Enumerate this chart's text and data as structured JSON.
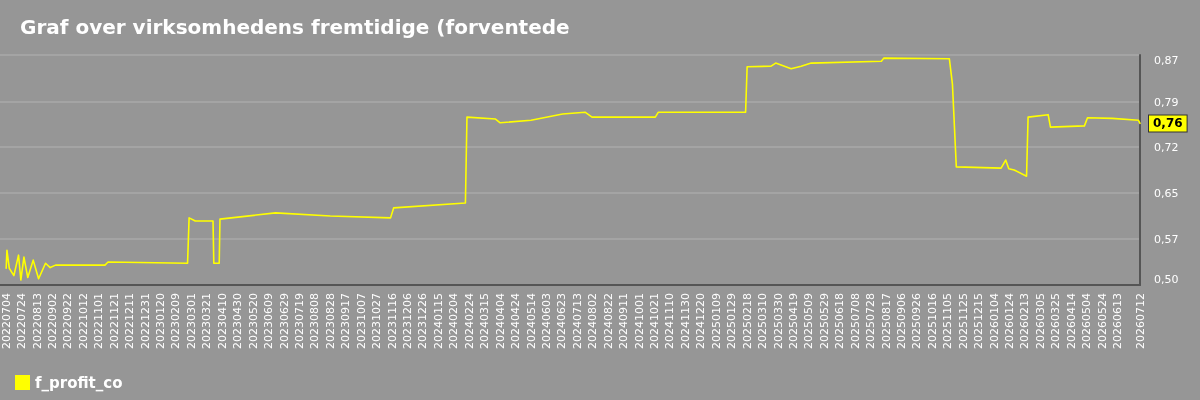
{
  "chart_data": {
    "type": "line",
    "title": "Graf over virksomhedens fremtidige (forventede",
    "x": [
      "2022-07-04",
      "2022-07-05",
      "2022-07-08",
      "2022-07-14",
      "2022-07-20",
      "2022-07-23",
      "2022-07-27",
      "2022-08-01",
      "2022-08-08",
      "2022-08-15",
      "2022-08-24",
      "2022-08-30",
      "2022-09-06",
      "2022-11-09",
      "2022-11-13",
      "2023-02-24",
      "2023-02-26",
      "2023-03-06",
      "2023-03-29",
      "2023-03-30",
      "2023-04-06",
      "2023-04-07",
      "2023-06-18",
      "2023-08-28",
      "2023-11-14",
      "2023-11-18",
      "2024-02-19",
      "2024-02-21",
      "2024-03-29",
      "2024-04-04",
      "2024-05-14",
      "2024-06-24",
      "2024-07-23",
      "2024-08-01",
      "2024-10-22",
      "2024-10-26",
      "2025-02-16",
      "2025-02-18",
      "2025-03-21",
      "2025-03-27",
      "2025-04-16",
      "2025-04-29",
      "2025-05-12",
      "2025-08-11",
      "2025-08-14",
      "2025-11-07",
      "2025-11-11",
      "2025-11-16",
      "2026-01-13",
      "2026-01-19",
      "2026-01-23",
      "2026-01-30",
      "2026-02-15",
      "2026-02-17",
      "2026-03-15",
      "2026-03-18",
      "2026-05-01",
      "2026-05-05",
      "2026-06-06",
      "2026-07-10",
      "2026-07-12"
    ],
    "series": [
      {
        "name": "f_profit_co",
        "color": "#ffff00",
        "values": [
          0.527,
          0.556,
          0.527,
          0.515,
          0.548,
          0.508,
          0.545,
          0.512,
          0.54,
          0.51,
          0.535,
          0.528,
          0.532,
          0.532,
          0.537,
          0.535,
          0.608,
          0.603,
          0.603,
          0.535,
          0.535,
          0.606,
          0.616,
          0.611,
          0.608,
          0.624,
          0.632,
          0.77,
          0.767,
          0.761,
          0.765,
          0.775,
          0.778,
          0.77,
          0.77,
          0.778,
          0.778,
          0.851,
          0.852,
          0.857,
          0.848,
          0.852,
          0.857,
          0.86,
          0.865,
          0.864,
          0.823,
          0.69,
          0.688,
          0.701,
          0.687,
          0.685,
          0.675,
          0.77,
          0.774,
          0.754,
          0.756,
          0.769,
          0.768,
          0.765,
          0.76
        ]
      }
    ],
    "xlim": [
      "2022-06-26",
      "2026-07-12"
    ],
    "xticks": [
      {
        "value": "2022-07-04",
        "label": "20220704"
      },
      {
        "value": "2022-07-24",
        "label": "20220724"
      },
      {
        "value": "2022-08-13",
        "label": "20220813"
      },
      {
        "value": "2022-09-02",
        "label": "20220902"
      },
      {
        "value": "2022-09-22",
        "label": "20220922"
      },
      {
        "value": "2022-10-12",
        "label": "20221012"
      },
      {
        "value": "2022-11-01",
        "label": "20221101"
      },
      {
        "value": "2022-11-21",
        "label": "20221121"
      },
      {
        "value": "2022-12-11",
        "label": "20221211"
      },
      {
        "value": "2022-12-31",
        "label": "20221231"
      },
      {
        "value": "2023-01-20",
        "label": "20230120"
      },
      {
        "value": "2023-02-09",
        "label": "20230209"
      },
      {
        "value": "2023-03-01",
        "label": "20230301"
      },
      {
        "value": "2023-03-21",
        "label": "20230321"
      },
      {
        "value": "2023-04-10",
        "label": "20230410"
      },
      {
        "value": "2023-04-30",
        "label": "20230430"
      },
      {
        "value": "2023-05-20",
        "label": "20230520"
      },
      {
        "value": "2023-06-09",
        "label": "20230609"
      },
      {
        "value": "2023-06-29",
        "label": "20230629"
      },
      {
        "value": "2023-07-19",
        "label": "20230719"
      },
      {
        "value": "2023-08-08",
        "label": "20230808"
      },
      {
        "value": "2023-08-28",
        "label": "20230828"
      },
      {
        "value": "2023-09-17",
        "label": "20230917"
      },
      {
        "value": "2023-10-07",
        "label": "20231007"
      },
      {
        "value": "2023-10-27",
        "label": "20231027"
      },
      {
        "value": "2023-11-16",
        "label": "20231116"
      },
      {
        "value": "2023-12-06",
        "label": "20231206"
      },
      {
        "value": "2023-12-26",
        "label": "20231226"
      },
      {
        "value": "2024-01-15",
        "label": "20240115"
      },
      {
        "value": "2024-02-04",
        "label": "20240204"
      },
      {
        "value": "2024-02-24",
        "label": "20240224"
      },
      {
        "value": "2024-03-15",
        "label": "20240315"
      },
      {
        "value": "2024-04-04",
        "label": "20240404"
      },
      {
        "value": "2024-04-24",
        "label": "20240424"
      },
      {
        "value": "2024-05-14",
        "label": "20240514"
      },
      {
        "value": "2024-06-03",
        "label": "20240603"
      },
      {
        "value": "2024-06-23",
        "label": "20240623"
      },
      {
        "value": "2024-07-13",
        "label": "20240713"
      },
      {
        "value": "2024-08-02",
        "label": "20240802"
      },
      {
        "value": "2024-08-22",
        "label": "20240822"
      },
      {
        "value": "2024-09-11",
        "label": "20240911"
      },
      {
        "value": "2024-10-01",
        "label": "20241001"
      },
      {
        "value": "2024-10-21",
        "label": "20241021"
      },
      {
        "value": "2024-11-10",
        "label": "20241110"
      },
      {
        "value": "2024-11-30",
        "label": "20241130"
      },
      {
        "value": "2024-12-20",
        "label": "20241220"
      },
      {
        "value": "2025-01-09",
        "label": "20250109"
      },
      {
        "value": "2025-01-29",
        "label": "20250129"
      },
      {
        "value": "2025-02-18",
        "label": "20250218"
      },
      {
        "value": "2025-03-10",
        "label": "20250310"
      },
      {
        "value": "2025-03-30",
        "label": "20250330"
      },
      {
        "value": "2025-04-19",
        "label": "20250419"
      },
      {
        "value": "2025-05-09",
        "label": "20250509"
      },
      {
        "value": "2025-05-29",
        "label": "20250529"
      },
      {
        "value": "2025-06-18",
        "label": "20250618"
      },
      {
        "value": "2025-07-08",
        "label": "20250708"
      },
      {
        "value": "2025-07-28",
        "label": "20250728"
      },
      {
        "value": "2025-08-17",
        "label": "20250817"
      },
      {
        "value": "2025-09-06",
        "label": "20250906"
      },
      {
        "value": "2025-09-26",
        "label": "20250926"
      },
      {
        "value": "2025-10-16",
        "label": "20251016"
      },
      {
        "value": "2025-11-05",
        "label": "20251105"
      },
      {
        "value": "2025-11-25",
        "label": "20251125"
      },
      {
        "value": "2025-12-15",
        "label": "20251215"
      },
      {
        "value": "2026-01-04",
        "label": "20260104"
      },
      {
        "value": "2026-01-24",
        "label": "20260124"
      },
      {
        "value": "2026-02-13",
        "label": "20260213"
      },
      {
        "value": "2026-03-05",
        "label": "20260305"
      },
      {
        "value": "2026-03-25",
        "label": "20260325"
      },
      {
        "value": "2026-04-14",
        "label": "20260414"
      },
      {
        "value": "2026-05-04",
        "label": "20260504"
      },
      {
        "value": "2026-05-24",
        "label": "20260524"
      },
      {
        "value": "2026-06-13",
        "label": "20260613"
      },
      {
        "value": "2026-07-12",
        "label": "20260712"
      }
    ],
    "ylim": [
      0.5,
      0.87
    ],
    "yticks": [
      {
        "value": 0.5,
        "label": "0,50"
      },
      {
        "value": 0.574,
        "label": "0,57"
      },
      {
        "value": 0.648,
        "label": "0,65"
      },
      {
        "value": 0.722,
        "label": "0,72"
      },
      {
        "value": 0.794,
        "label": "0,79"
      },
      {
        "value": 0.87,
        "label": "0,87"
      }
    ],
    "annotations": [
      {
        "text": "0,76",
        "x": "2026-07-12",
        "y": 0.76
      }
    ],
    "grid": "y",
    "legend": "bottom left",
    "marker": "none",
    "line_style": "solid"
  }
}
